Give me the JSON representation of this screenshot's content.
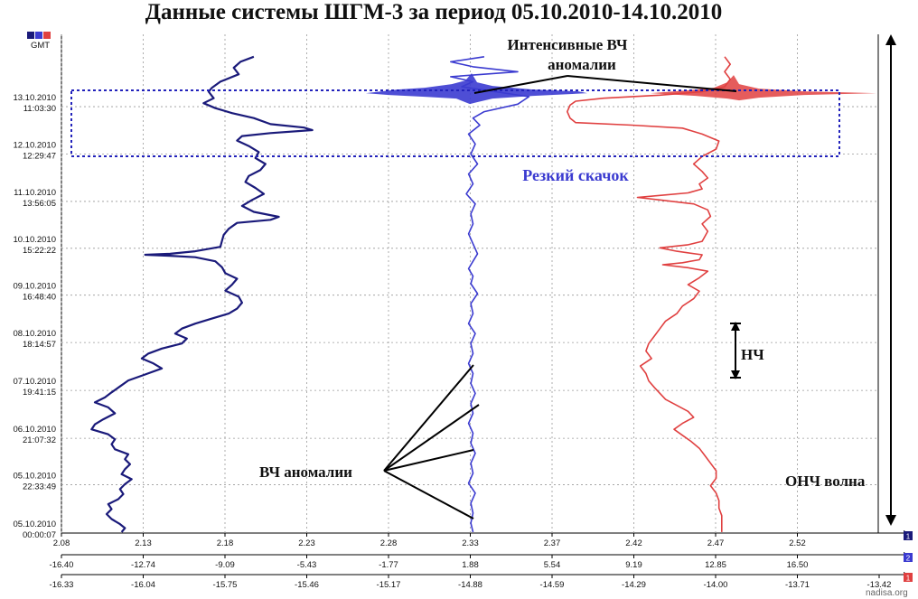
{
  "title": "Данные системы ШГМ-3 за период 05.10.2010-14.10.2010",
  "gmt_label": "GMT",
  "watermark": "nadisa.org",
  "legend_badges": [
    {
      "label": "1",
      "color": "#1a1a7a"
    },
    {
      "label": "2",
      "color": "#3b3bd0"
    },
    {
      "label": "1",
      "color": "#e04040"
    }
  ],
  "annotations": {
    "hf_intense": [
      "Интенсивные ВЧ",
      "аномалии"
    ],
    "jump": "Резкий скачок",
    "lf": "НЧ",
    "hf": "ВЧ аномалии",
    "ulf": "ОНЧ волна"
  },
  "chart_data": {
    "type": "line",
    "y_axis": {
      "label": "GMT",
      "ticks": [
        {
          "date": "13.10.2010",
          "time": "11:03:30"
        },
        {
          "date": "12.10.2010",
          "time": "12:29:47"
        },
        {
          "date": "11.10.2010",
          "time": "13:56:05"
        },
        {
          "date": "10.10.2010",
          "time": "15:22:22"
        },
        {
          "date": "09.10.2010",
          "time": "16:48:40"
        },
        {
          "date": "08.10.2010",
          "time": "18:14:57"
        },
        {
          "date": "07.10.2010",
          "time": "19:41:15"
        },
        {
          "date": "06.10.2010",
          "time": "21:07:32"
        },
        {
          "date": "05.10.2010",
          "time": "22:33:49"
        },
        {
          "date": "05.10.2010",
          "time": "00:00:07"
        }
      ]
    },
    "x_axes": [
      {
        "badge": "1",
        "color": "#1a1a7a",
        "ticks": [
          "2.08",
          "2.13",
          "2.18",
          "2.23",
          "2.28",
          "2.33",
          "2.37",
          "2.42",
          "2.47",
          "2.52"
        ]
      },
      {
        "badge": "2",
        "color": "#3b3bd0",
        "ticks": [
          "-16.40",
          "-12.74",
          "-9.09",
          "-5.43",
          "-1.77",
          "1.88",
          "5.54",
          "9.19",
          "12.85",
          "16.50"
        ]
      },
      {
        "badge": "1",
        "color": "#e04040",
        "ticks": [
          "-16.33",
          "-16.04",
          "-15.75",
          "-15.46",
          "-15.17",
          "-14.88",
          "-14.59",
          "-14.29",
          "-14.00",
          "-13.71",
          "-13.42"
        ]
      }
    ],
    "series": [
      {
        "axis": 0,
        "color": "#1a1a7a",
        "points": [
          [
            2.195,
            0.955
          ],
          [
            2.187,
            0.945
          ],
          [
            2.183,
            0.933
          ],
          [
            2.186,
            0.92
          ],
          [
            2.175,
            0.905
          ],
          [
            2.17,
            0.893
          ],
          [
            2.168,
            0.885
          ],
          [
            2.171,
            0.872
          ],
          [
            2.165,
            0.862
          ],
          [
            2.172,
            0.852
          ],
          [
            2.182,
            0.842
          ],
          [
            2.195,
            0.832
          ],
          [
            2.205,
            0.82
          ],
          [
            2.225,
            0.813
          ],
          [
            2.23,
            0.808
          ],
          [
            2.205,
            0.802
          ],
          [
            2.188,
            0.796
          ],
          [
            2.185,
            0.787
          ],
          [
            2.192,
            0.776
          ],
          [
            2.198,
            0.764
          ],
          [
            2.196,
            0.752
          ],
          [
            2.202,
            0.74
          ],
          [
            2.199,
            0.728
          ],
          [
            2.192,
            0.716
          ],
          [
            2.19,
            0.704
          ],
          [
            2.196,
            0.692
          ],
          [
            2.201,
            0.68
          ],
          [
            2.194,
            0.668
          ],
          [
            2.188,
            0.656
          ],
          [
            2.195,
            0.644
          ],
          [
            2.21,
            0.634
          ],
          [
            2.205,
            0.628
          ],
          [
            2.185,
            0.622
          ],
          [
            2.18,
            0.61
          ],
          [
            2.177,
            0.598
          ],
          [
            2.176,
            0.586
          ],
          [
            2.175,
            0.574
          ],
          [
            2.16,
            0.565
          ],
          [
            2.145,
            0.56
          ],
          [
            2.13,
            0.558
          ],
          [
            2.145,
            0.556
          ],
          [
            2.16,
            0.553
          ],
          [
            2.172,
            0.545
          ],
          [
            2.176,
            0.533
          ],
          [
            2.178,
            0.521
          ],
          [
            2.185,
            0.51
          ],
          [
            2.182,
            0.498
          ],
          [
            2.178,
            0.486
          ],
          [
            2.186,
            0.474
          ],
          [
            2.188,
            0.462
          ],
          [
            2.185,
            0.45
          ],
          [
            2.18,
            0.44
          ],
          [
            2.17,
            0.43
          ],
          [
            2.16,
            0.42
          ],
          [
            2.152,
            0.41
          ],
          [
            2.148,
            0.4
          ],
          [
            2.155,
            0.39
          ],
          [
            2.152,
            0.38
          ],
          [
            2.14,
            0.37
          ],
          [
            2.132,
            0.36
          ],
          [
            2.128,
            0.35
          ],
          [
            2.135,
            0.34
          ],
          [
            2.14,
            0.33
          ],
          [
            2.13,
            0.318
          ],
          [
            2.12,
            0.306
          ],
          [
            2.115,
            0.294
          ],
          [
            2.11,
            0.282
          ],
          [
            2.106,
            0.272
          ],
          [
            2.1,
            0.262
          ],
          [
            2.108,
            0.252
          ],
          [
            2.112,
            0.24
          ],
          [
            2.105,
            0.228
          ],
          [
            2.1,
            0.218
          ],
          [
            2.098,
            0.208
          ],
          [
            2.108,
            0.198
          ],
          [
            2.112,
            0.188
          ],
          [
            2.11,
            0.178
          ],
          [
            2.112,
            0.168
          ],
          [
            2.12,
            0.158
          ],
          [
            2.118,
            0.148
          ],
          [
            2.121,
            0.138
          ],
          [
            2.118,
            0.128
          ],
          [
            2.116,
            0.118
          ],
          [
            2.122,
            0.108
          ],
          [
            2.118,
            0.098
          ],
          [
            2.115,
            0.088
          ],
          [
            2.117,
            0.078
          ],
          [
            2.114,
            0.068
          ],
          [
            2.108,
            0.058
          ],
          [
            2.11,
            0.048
          ],
          [
            2.107,
            0.038
          ],
          [
            2.11,
            0.028
          ],
          [
            2.115,
            0.018
          ],
          [
            2.118,
            0.01
          ],
          [
            2.116,
            0.002
          ]
        ]
      },
      {
        "axis": 1,
        "color": "#3b3bd0",
        "points": [
          [
            2.5,
            0.955
          ],
          [
            1.0,
            0.945
          ],
          [
            2.0,
            0.935
          ],
          [
            4.0,
            0.925
          ],
          [
            1.0,
            0.915
          ],
          [
            2.0,
            0.905
          ],
          [
            1.5,
            0.895
          ],
          [
            3.0,
            0.885
          ],
          [
            4.5,
            0.875
          ],
          [
            4.0,
            0.86
          ],
          [
            2.5,
            0.845
          ],
          [
            2.0,
            0.832
          ],
          [
            2.3,
            0.818
          ],
          [
            1.8,
            0.8
          ],
          [
            2.1,
            0.78
          ],
          [
            1.9,
            0.76
          ],
          [
            2.2,
            0.74
          ],
          [
            1.8,
            0.72
          ],
          [
            2.0,
            0.7
          ],
          [
            1.7,
            0.68
          ],
          [
            2.1,
            0.66
          ],
          [
            1.9,
            0.64
          ],
          [
            2.0,
            0.62
          ],
          [
            1.8,
            0.6
          ],
          [
            2.0,
            0.58
          ],
          [
            2.2,
            0.56
          ],
          [
            2.0,
            0.545
          ],
          [
            1.8,
            0.53
          ],
          [
            2.0,
            0.515
          ],
          [
            1.9,
            0.5
          ],
          [
            2.2,
            0.48
          ],
          [
            1.9,
            0.46
          ],
          [
            2.0,
            0.44
          ],
          [
            1.8,
            0.42
          ],
          [
            2.1,
            0.4
          ],
          [
            1.9,
            0.38
          ],
          [
            2.0,
            0.36
          ],
          [
            1.8,
            0.34
          ],
          [
            2.0,
            0.32
          ],
          [
            1.9,
            0.3
          ],
          [
            2.1,
            0.28
          ],
          [
            1.9,
            0.26
          ],
          [
            2.0,
            0.24
          ],
          [
            1.8,
            0.22
          ],
          [
            2.0,
            0.2
          ],
          [
            1.9,
            0.18
          ],
          [
            2.1,
            0.16
          ],
          [
            1.9,
            0.14
          ],
          [
            2.0,
            0.12
          ],
          [
            1.8,
            0.1
          ],
          [
            2.1,
            0.08
          ],
          [
            1.9,
            0.06
          ],
          [
            2.0,
            0.04
          ],
          [
            1.9,
            0.02
          ],
          [
            2.0,
            0.002
          ]
        ]
      },
      {
        "axis": 2,
        "color": "#e04040",
        "points": [
          [
            -13.97,
            0.955
          ],
          [
            -13.95,
            0.94
          ],
          [
            -13.97,
            0.925
          ],
          [
            -13.95,
            0.91
          ],
          [
            -13.97,
            0.895
          ],
          [
            -14.05,
            0.885
          ],
          [
            -14.2,
            0.878
          ],
          [
            -14.4,
            0.872
          ],
          [
            -14.5,
            0.866
          ],
          [
            -14.52,
            0.858
          ],
          [
            -14.53,
            0.845
          ],
          [
            -14.52,
            0.832
          ],
          [
            -14.5,
            0.823
          ],
          [
            -14.3,
            0.818
          ],
          [
            -14.12,
            0.812
          ],
          [
            -14.05,
            0.8
          ],
          [
            -13.99,
            0.786
          ],
          [
            -14.0,
            0.77
          ],
          [
            -14.05,
            0.755
          ],
          [
            -14.08,
            0.74
          ],
          [
            -14.05,
            0.725
          ],
          [
            -14.03,
            0.712
          ],
          [
            -14.06,
            0.7
          ],
          [
            -14.05,
            0.69
          ],
          [
            -14.1,
            0.682
          ],
          [
            -14.2,
            0.677
          ],
          [
            -14.28,
            0.673
          ],
          [
            -14.2,
            0.668
          ],
          [
            -14.08,
            0.66
          ],
          [
            -14.03,
            0.648
          ],
          [
            -14.02,
            0.635
          ],
          [
            -14.05,
            0.62
          ],
          [
            -14.03,
            0.605
          ],
          [
            -14.04,
            0.595
          ],
          [
            -14.05,
            0.585
          ],
          [
            -14.1,
            0.578
          ],
          [
            -14.2,
            0.572
          ],
          [
            -14.14,
            0.565
          ],
          [
            -14.05,
            0.558
          ],
          [
            -14.06,
            0.548
          ],
          [
            -14.12,
            0.542
          ],
          [
            -14.19,
            0.538
          ],
          [
            -14.1,
            0.532
          ],
          [
            -14.03,
            0.525
          ],
          [
            -14.06,
            0.512
          ],
          [
            -14.1,
            0.498
          ],
          [
            -14.06,
            0.485
          ],
          [
            -14.08,
            0.47
          ],
          [
            -14.12,
            0.455
          ],
          [
            -14.14,
            0.44
          ],
          [
            -14.18,
            0.425
          ],
          [
            -14.2,
            0.41
          ],
          [
            -14.22,
            0.395
          ],
          [
            -14.24,
            0.38
          ],
          [
            -14.25,
            0.365
          ],
          [
            -14.23,
            0.35
          ],
          [
            -14.27,
            0.335
          ],
          [
            -14.25,
            0.32
          ],
          [
            -14.24,
            0.305
          ],
          [
            -14.22,
            0.292
          ],
          [
            -14.2,
            0.28
          ],
          [
            -14.18,
            0.268
          ],
          [
            -14.14,
            0.256
          ],
          [
            -14.1,
            0.244
          ],
          [
            -14.08,
            0.232
          ],
          [
            -14.12,
            0.22
          ],
          [
            -14.15,
            0.208
          ],
          [
            -14.12,
            0.196
          ],
          [
            -14.09,
            0.184
          ],
          [
            -14.06,
            0.17
          ],
          [
            -14.04,
            0.155
          ],
          [
            -14.02,
            0.14
          ],
          [
            -14.0,
            0.125
          ],
          [
            -14.0,
            0.11
          ],
          [
            -14.02,
            0.095
          ],
          [
            -14.0,
            0.08
          ],
          [
            -13.99,
            0.065
          ],
          [
            -13.99,
            0.05
          ],
          [
            -13.98,
            0.035
          ],
          [
            -13.98,
            0.02
          ],
          [
            -13.98,
            0.002
          ]
        ]
      }
    ]
  }
}
